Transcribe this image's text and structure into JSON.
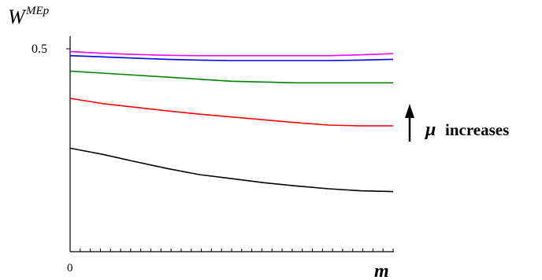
{
  "chart_data": {
    "type": "line",
    "title": "",
    "ylabel": "W",
    "ylabel_superscript": "MEp",
    "xlabel": "m",
    "y_tick_labels": [
      "0.5"
    ],
    "x_tick_labels": [
      "0"
    ],
    "annotation": {
      "mu_symbol": "μ",
      "text": "increases",
      "arrow": "up"
    },
    "x": [
      0,
      0.1,
      0.2,
      0.3,
      0.4,
      0.5,
      0.6,
      0.7,
      0.8,
      0.9,
      1.0
    ],
    "xlim": [
      0,
      1
    ],
    "ylim": [
      0,
      0.5
    ],
    "grid": false,
    "series": [
      {
        "color": "#000000",
        "values": [
          0.255,
          0.24,
          0.222,
          0.205,
          0.19,
          0.18,
          0.17,
          0.162,
          0.155,
          0.15,
          0.148
        ]
      },
      {
        "color": "#ff0000",
        "values": [
          0.378,
          0.365,
          0.356,
          0.347,
          0.339,
          0.332,
          0.325,
          0.318,
          0.312,
          0.31,
          0.31
        ]
      },
      {
        "color": "#008000",
        "values": [
          0.445,
          0.44,
          0.435,
          0.43,
          0.425,
          0.42,
          0.418,
          0.416,
          0.416,
          0.416,
          0.416
        ]
      },
      {
        "color": "#0000ff",
        "values": [
          0.483,
          0.48,
          0.477,
          0.474,
          0.472,
          0.471,
          0.471,
          0.471,
          0.471,
          0.472,
          0.474
        ]
      },
      {
        "color": "#ff00ff",
        "values": [
          0.493,
          0.489,
          0.486,
          0.484,
          0.483,
          0.483,
          0.483,
          0.483,
          0.483,
          0.485,
          0.488
        ]
      }
    ]
  }
}
